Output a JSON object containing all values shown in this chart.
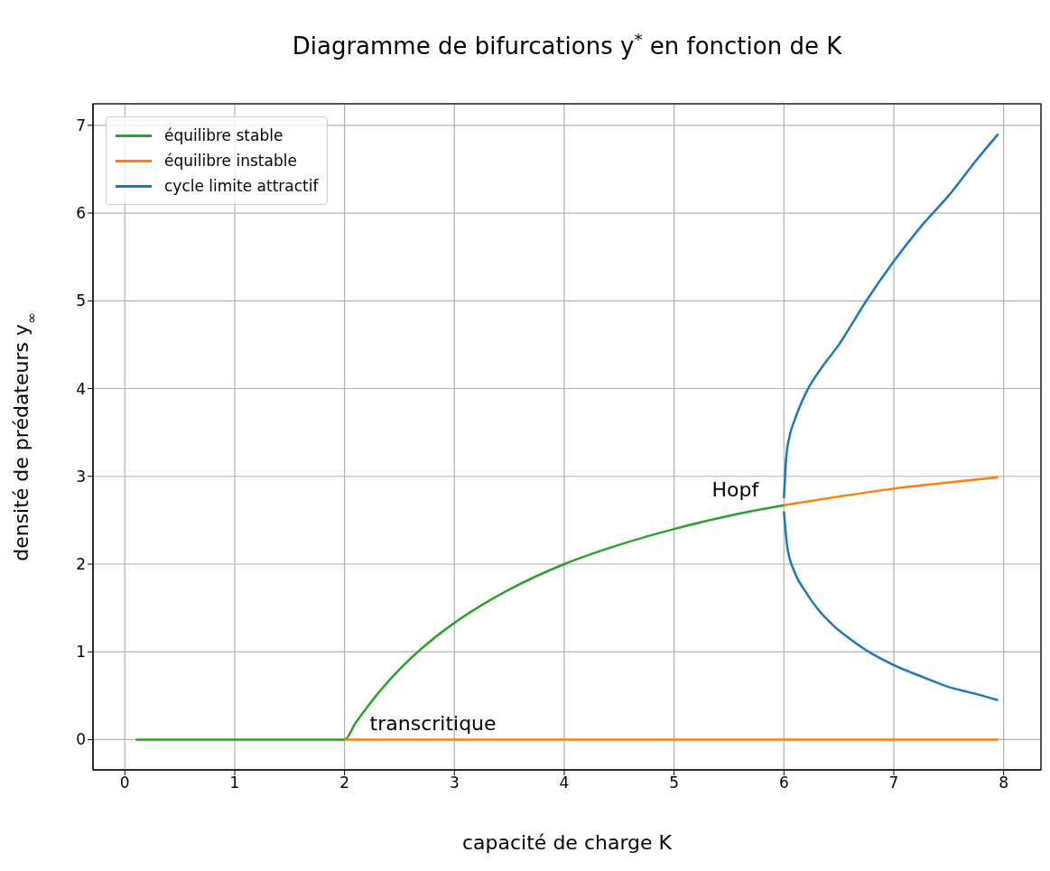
{
  "chart_data": {
    "type": "line",
    "title": "Diagramme de bifurcations y$^{*}$ en fonction de K",
    "xlabel": "capacité de charge K",
    "ylabel": "densité de prédateurs y$_{∞}$",
    "xlim": [
      -0.29,
      8.34
    ],
    "ylim": [
      -0.345,
      7.245
    ],
    "xticks": [
      0,
      1,
      2,
      3,
      4,
      5,
      6,
      7,
      8
    ],
    "yticks": [
      0,
      1,
      2,
      3,
      4,
      5,
      6,
      7
    ],
    "grid": true,
    "legend": "top left",
    "series": [
      {
        "name": "équilibre stable",
        "color": "#2ca02c",
        "x": [
          0.1,
          1,
          2,
          2.1,
          2.2,
          2.3,
          2.5,
          2.75,
          3,
          3.5,
          4,
          4.5,
          5,
          5.5,
          6
        ],
        "values": [
          0,
          0,
          0,
          0.19,
          0.36,
          0.52,
          0.8,
          1.09,
          1.33,
          1.71,
          2,
          2.22,
          2.4,
          2.55,
          2.67
        ]
      },
      {
        "name": "équilibre instable",
        "color": "#ff7f0e",
        "x": [
          2,
          7.95
        ],
        "values": [
          0,
          0
        ]
      },
      {
        "color": "#ff7f0e",
        "x": [
          6,
          6.5,
          7,
          7.5,
          7.95
        ],
        "values": [
          2.67,
          2.77,
          2.86,
          2.93,
          2.99
        ]
      },
      {
        "name": "cycle limite attractif",
        "color": "#1f77b4",
        "x": [
          6,
          6.02,
          6.05,
          6.1,
          6.2,
          6.35,
          6.5,
          6.75,
          7,
          7.25,
          7.5,
          7.75,
          7.95
        ],
        "values": [
          2.75,
          3.2,
          3.45,
          3.65,
          3.95,
          4.25,
          4.5,
          5,
          5.45,
          5.85,
          6.2,
          6.6,
          6.9
        ]
      },
      {
        "color": "#1f77b4",
        "x": [
          6,
          6.03,
          6.1,
          6.2,
          6.3,
          6.45,
          6.6,
          6.8,
          7,
          7.25,
          7.5,
          7.75,
          7.95
        ],
        "values": [
          2.6,
          2.2,
          1.9,
          1.68,
          1.5,
          1.3,
          1.15,
          0.98,
          0.85,
          0.72,
          0.6,
          0.52,
          0.45
        ]
      }
    ],
    "annotations": [
      {
        "text": "Hopf",
        "x": 6,
        "y": 2.67
      },
      {
        "text": "transcritique",
        "x": 2,
        "y": 0
      }
    ]
  }
}
